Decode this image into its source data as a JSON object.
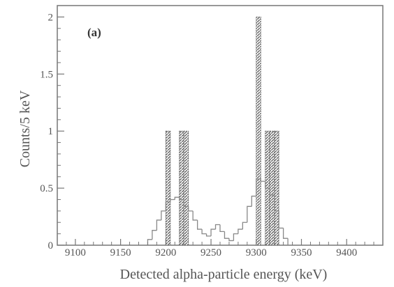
{
  "chart_data": {
    "type": "bar",
    "title": "",
    "panel_label": "(a)",
    "xlabel": "Detected alpha-particle energy (keV)",
    "ylabel": "Counts/5 keV",
    "xlim": [
      9080,
      9440
    ],
    "ylim": [
      0,
      2.1
    ],
    "bin_width": 5,
    "xticks": [
      9100,
      9150,
      9200,
      9250,
      9300,
      9350,
      9400
    ],
    "xtick_labels": [
      "9100",
      "9150",
      "9200",
      "9250",
      "9300",
      "9350",
      "9400"
    ],
    "yticks": [
      0,
      0.5,
      1,
      1.5,
      2
    ],
    "ytick_labels": [
      "0",
      "0.5",
      "1",
      "1.5",
      "2"
    ],
    "grid": false,
    "series": [
      {
        "style": "solid-step",
        "color": "#888888",
        "x": [
          9180,
          9185,
          9190,
          9195,
          9200,
          9205,
          9210,
          9215,
          9220,
          9225,
          9230,
          9235,
          9240,
          9245,
          9250,
          9255,
          9260,
          9265,
          9270,
          9275,
          9280,
          9285,
          9290,
          9295,
          9300,
          9305,
          9310,
          9315,
          9320,
          9325,
          9330
        ],
        "values": [
          0.05,
          0.13,
          0.22,
          0.3,
          0.38,
          0.4,
          0.42,
          0.4,
          0.34,
          0.3,
          0.22,
          0.14,
          0.1,
          0.08,
          0.14,
          0.18,
          0.12,
          0.06,
          0.04,
          0.1,
          0.14,
          0.2,
          0.34,
          0.43,
          0.58,
          0.56,
          0.5,
          0.44,
          0.3,
          0.15,
          0.06
        ]
      },
      {
        "style": "hatched",
        "color": "#666666",
        "x": [
          9200,
          9215,
          9220,
          9300,
          9310,
          9315,
          9320
        ],
        "values": [
          1,
          1,
          1,
          2,
          1,
          1,
          1
        ]
      }
    ]
  }
}
